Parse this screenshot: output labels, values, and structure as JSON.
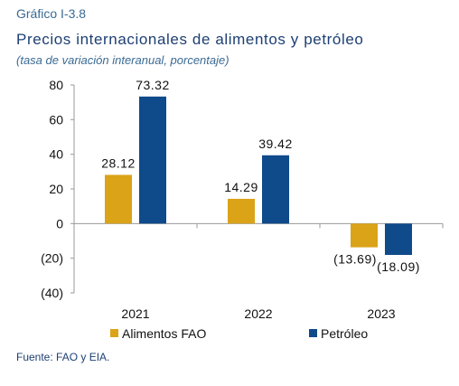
{
  "header": {
    "label": "Gráfico I-3.8",
    "title": "Precios internacionales de alimentos y petróleo",
    "subtitle": "(tasa de variación interanual, porcentaje)"
  },
  "footer": {
    "source": "Fuente: FAO y EIA."
  },
  "chart_data": {
    "type": "bar",
    "categories": [
      "2021",
      "2022",
      "2023"
    ],
    "series": [
      {
        "name": "Alimentos FAO",
        "color": "#dba318",
        "values": [
          28.12,
          14.29,
          -13.69
        ],
        "labels": [
          "28.12",
          "14.29",
          "(13.69)"
        ]
      },
      {
        "name": "Petróleo",
        "color": "#0f4a8a",
        "values": [
          73.32,
          39.42,
          -18.09
        ],
        "labels": [
          "73.32",
          "39.42",
          "(18.09)"
        ]
      }
    ],
    "ylim": [
      -40,
      80
    ],
    "yticks": [
      80,
      60,
      40,
      20,
      0,
      -20,
      -40
    ],
    "ytick_labels": [
      "80",
      "60",
      "40",
      "20",
      "0",
      "(20)",
      "(40)"
    ],
    "legend_position": "bottom",
    "grid": false
  }
}
